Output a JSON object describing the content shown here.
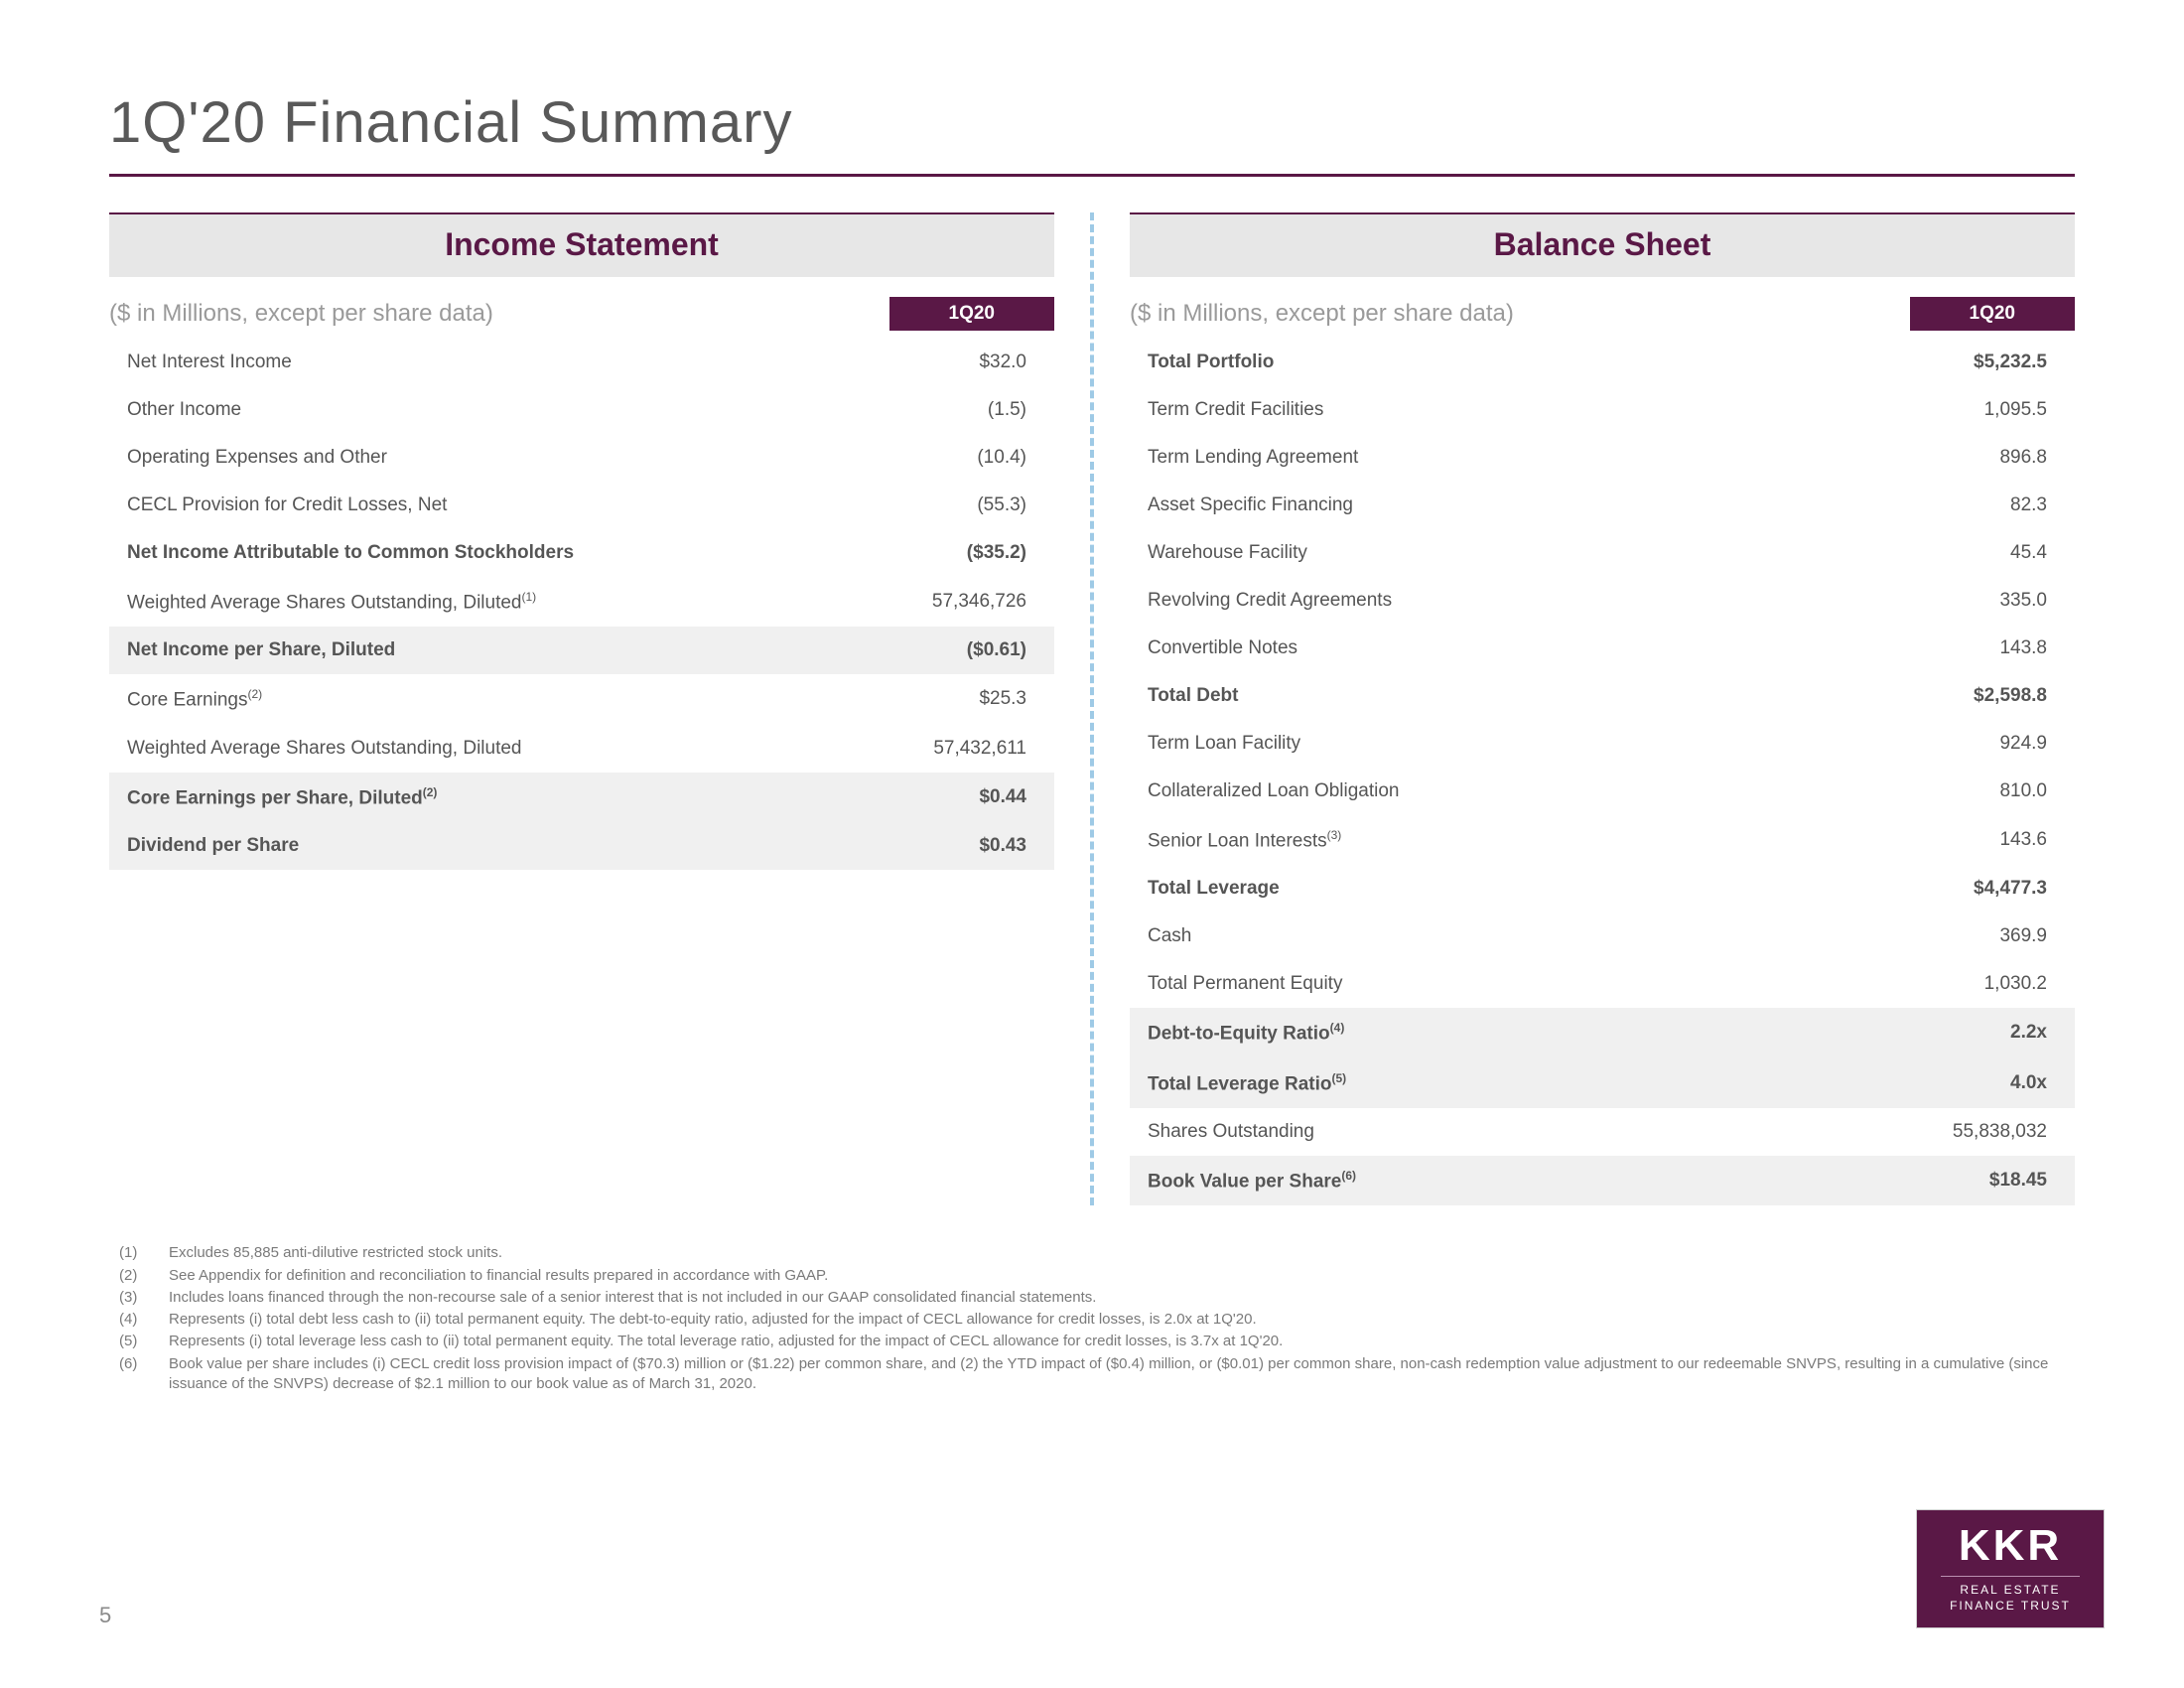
{
  "page_title": "1Q'20 Financial Summary",
  "page_number": "5",
  "colors": {
    "brand": "#5a1846",
    "header_bg": "#e7e7e7",
    "shade_bg": "#f0f0f0",
    "divider": "#9ecae6",
    "text": "#555555",
    "muted": "#9a9a9a"
  },
  "income": {
    "section_title": "Income Statement",
    "subhead": "($ in Millions, except per share data)",
    "period": "1Q20",
    "rows": [
      {
        "label": "Net Interest Income",
        "value": "$32.0",
        "bold": false,
        "shade": false,
        "sup": ""
      },
      {
        "label": "Other Income",
        "value": "(1.5)",
        "bold": false,
        "shade": false,
        "sup": ""
      },
      {
        "label": "Operating Expenses and Other",
        "value": "(10.4)",
        "bold": false,
        "shade": false,
        "sup": ""
      },
      {
        "label": "CECL Provision for Credit Losses, Net",
        "value": "(55.3)",
        "bold": false,
        "shade": false,
        "sup": ""
      },
      {
        "label": "Net Income Attributable to Common Stockholders",
        "value": "($35.2)",
        "bold": true,
        "shade": false,
        "sup": ""
      },
      {
        "label": "Weighted Average Shares Outstanding, Diluted",
        "value": "57,346,726",
        "bold": false,
        "shade": false,
        "sup": "(1)"
      },
      {
        "label": "Net Income per Share, Diluted",
        "value": "($0.61)",
        "bold": true,
        "shade": true,
        "sup": ""
      },
      {
        "label": "Core Earnings",
        "value": "$25.3",
        "bold": false,
        "shade": false,
        "sup": "(2)"
      },
      {
        "label": "Weighted Average Shares Outstanding, Diluted",
        "value": "57,432,611",
        "bold": false,
        "shade": false,
        "sup": ""
      },
      {
        "label": "Core Earnings per Share, Diluted",
        "value": "$0.44",
        "bold": true,
        "shade": true,
        "sup": "(2)"
      },
      {
        "label": "Dividend per Share",
        "value": "$0.43",
        "bold": true,
        "shade": true,
        "sup": ""
      }
    ]
  },
  "balance": {
    "section_title": "Balance Sheet",
    "subhead": "($ in Millions, except per share data)",
    "period": "1Q20",
    "rows": [
      {
        "label": "Total Portfolio",
        "value": "$5,232.5",
        "bold": true,
        "shade": false,
        "sup": ""
      },
      {
        "label": "Term Credit Facilities",
        "value": "1,095.5",
        "bold": false,
        "shade": false,
        "sup": ""
      },
      {
        "label": "Term Lending Agreement",
        "value": "896.8",
        "bold": false,
        "shade": false,
        "sup": ""
      },
      {
        "label": "Asset Specific Financing",
        "value": "82.3",
        "bold": false,
        "shade": false,
        "sup": ""
      },
      {
        "label": "Warehouse Facility",
        "value": "45.4",
        "bold": false,
        "shade": false,
        "sup": ""
      },
      {
        "label": "Revolving Credit Agreements",
        "value": "335.0",
        "bold": false,
        "shade": false,
        "sup": ""
      },
      {
        "label": "Convertible Notes",
        "value": "143.8",
        "bold": false,
        "shade": false,
        "sup": ""
      },
      {
        "label": "Total Debt",
        "value": "$2,598.8",
        "bold": true,
        "shade": false,
        "sup": ""
      },
      {
        "label": "Term Loan Facility",
        "value": "924.9",
        "bold": false,
        "shade": false,
        "sup": ""
      },
      {
        "label": "Collateralized Loan Obligation",
        "value": "810.0",
        "bold": false,
        "shade": false,
        "sup": ""
      },
      {
        "label": "Senior Loan Interests",
        "value": "143.6",
        "bold": false,
        "shade": false,
        "sup": "(3)"
      },
      {
        "label": "Total Leverage",
        "value": "$4,477.3",
        "bold": true,
        "shade": false,
        "sup": ""
      },
      {
        "label": "Cash",
        "value": "369.9",
        "bold": false,
        "shade": false,
        "sup": ""
      },
      {
        "label": "Total Permanent Equity",
        "value": "1,030.2",
        "bold": false,
        "shade": false,
        "sup": ""
      },
      {
        "label": "Debt-to-Equity Ratio",
        "value": "2.2x",
        "bold": true,
        "shade": true,
        "sup": "(4)"
      },
      {
        "label": "Total Leverage Ratio",
        "value": "4.0x",
        "bold": true,
        "shade": true,
        "sup": "(5)"
      },
      {
        "label": "Shares Outstanding",
        "value": "55,838,032",
        "bold": false,
        "shade": false,
        "sup": ""
      },
      {
        "label": "Book Value per Share",
        "value": "$18.45",
        "bold": true,
        "shade": true,
        "sup": "(6)"
      }
    ]
  },
  "footnotes": [
    {
      "n": "(1)",
      "t": "Excludes 85,885 anti-dilutive restricted stock units."
    },
    {
      "n": "(2)",
      "t": "See Appendix for definition and reconciliation to financial results prepared in accordance with GAAP."
    },
    {
      "n": "(3)",
      "t": "Includes loans financed through the non-recourse sale of a senior interest that is not included in our GAAP consolidated financial statements."
    },
    {
      "n": "(4)",
      "t": "Represents (i) total debt less cash to (ii) total permanent equity. The debt-to-equity ratio, adjusted for the impact of CECL allowance for credit losses, is 2.0x at 1Q'20."
    },
    {
      "n": "(5)",
      "t": "Represents (i) total leverage less cash to (ii) total permanent equity. The total leverage ratio, adjusted for the impact of CECL allowance for credit losses, is 3.7x at 1Q'20."
    },
    {
      "n": "(6)",
      "t": "Book value per share includes (i) CECL credit loss provision impact of ($70.3) million or ($1.22) per common share, and (2) the YTD impact of ($0.4) million, or ($0.01) per common share, non-cash redemption value adjustment to our redeemable SNVPS, resulting in a cumulative (since issuance of the SNVPS) decrease of $2.1 million to our book value as of March 31, 2020."
    }
  ],
  "logo": {
    "main": "KKR",
    "sub1": "REAL ESTATE",
    "sub2": "FINANCE TRUST"
  }
}
